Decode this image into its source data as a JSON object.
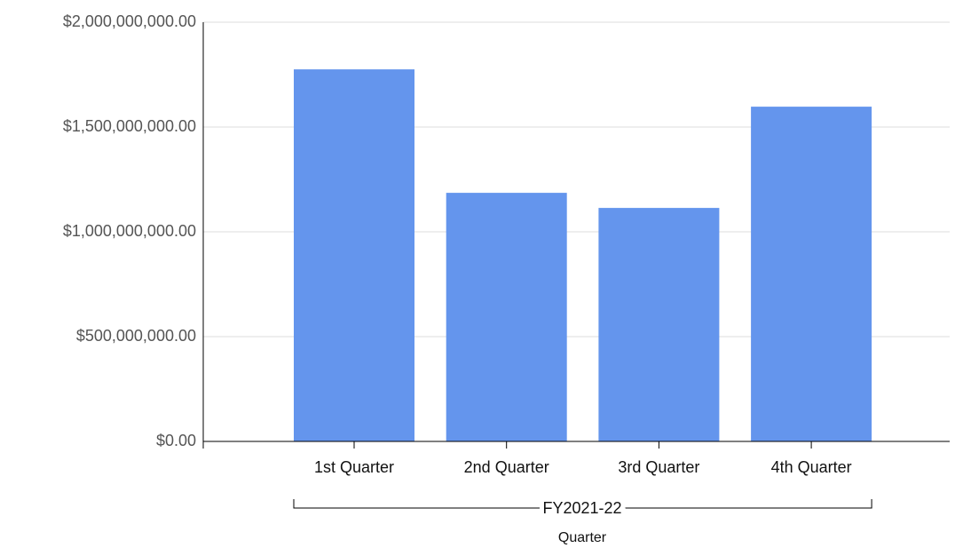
{
  "chart_data": {
    "type": "bar",
    "categories": [
      "1st Quarter",
      "2nd Quarter",
      "3rd Quarter",
      "4th Quarter"
    ],
    "category_group": "FY2021-22",
    "x_label": "Quarter",
    "values": [
      1775000000,
      1186000000,
      1114000000,
      1597000000
    ],
    "color": "#6495ed",
    "ylim": [
      0,
      2000000000
    ],
    "yticks": [
      {
        "value": 0,
        "label": "$0.00"
      },
      {
        "value": 500000000,
        "label": "$500,000,000.00"
      },
      {
        "value": 1000000000,
        "label": "$1,000,000,000.00"
      },
      {
        "value": 1500000000,
        "label": "$1,500,000,000.00"
      },
      {
        "value": 2000000000,
        "label": "$2,000,000,000.00"
      }
    ],
    "grid": true
  }
}
